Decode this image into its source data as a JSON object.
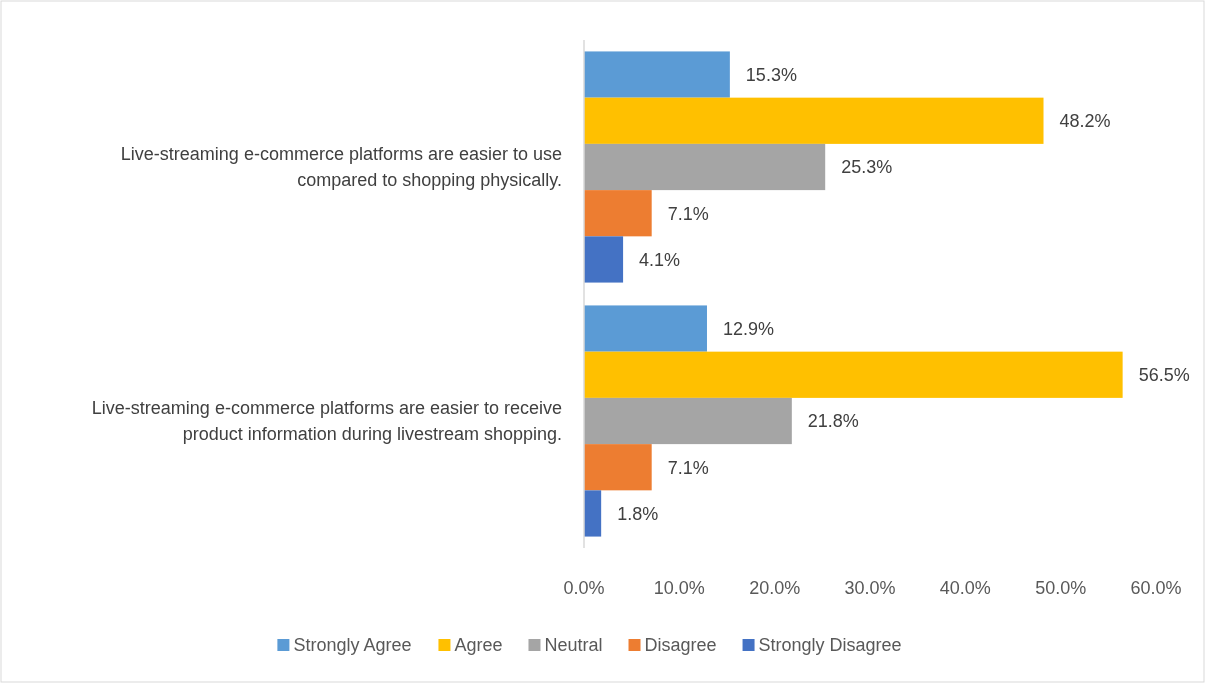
{
  "chart_data": {
    "type": "bar",
    "orientation": "horizontal",
    "categories": [
      "Live-streaming e-commerce platforms are easier to use compared to shopping physically.",
      "Live-streaming e-commerce platforms are easier to receive product information during livestream shopping."
    ],
    "series": [
      {
        "name": "Strongly Agree",
        "color": "#5b9bd5",
        "values": [
          15.3,
          12.9
        ],
        "value_labels": [
          "15.3%",
          "12.9%"
        ]
      },
      {
        "name": "Agree",
        "color": "#ffc000",
        "values": [
          48.2,
          56.5
        ],
        "value_labels": [
          "48.2%",
          "56.5%"
        ]
      },
      {
        "name": "Neutral",
        "color": "#a5a5a5",
        "values": [
          25.3,
          21.8
        ],
        "value_labels": [
          "25.3%",
          "21.8%"
        ]
      },
      {
        "name": "Disagree",
        "color": "#ed7d31",
        "values": [
          7.1,
          7.1
        ],
        "value_labels": [
          "7.1%",
          "7.1%"
        ]
      },
      {
        "name": "Strongly Disagree",
        "color": "#4472c4",
        "values": [
          4.1,
          1.8
        ],
        "value_labels": [
          "4.1%",
          "1.8%"
        ]
      }
    ],
    "xlim": [
      0,
      60
    ],
    "xticks": [
      {
        "value": 0,
        "label": "0.0%"
      },
      {
        "value": 10,
        "label": "10.0%"
      },
      {
        "value": 20,
        "label": "20.0%"
      },
      {
        "value": 30,
        "label": "30.0%"
      },
      {
        "value": 40,
        "label": "40.0%"
      },
      {
        "value": 50,
        "label": "50.0%"
      },
      {
        "value": 60,
        "label": "60.0%"
      }
    ],
    "legend": "bottom"
  }
}
